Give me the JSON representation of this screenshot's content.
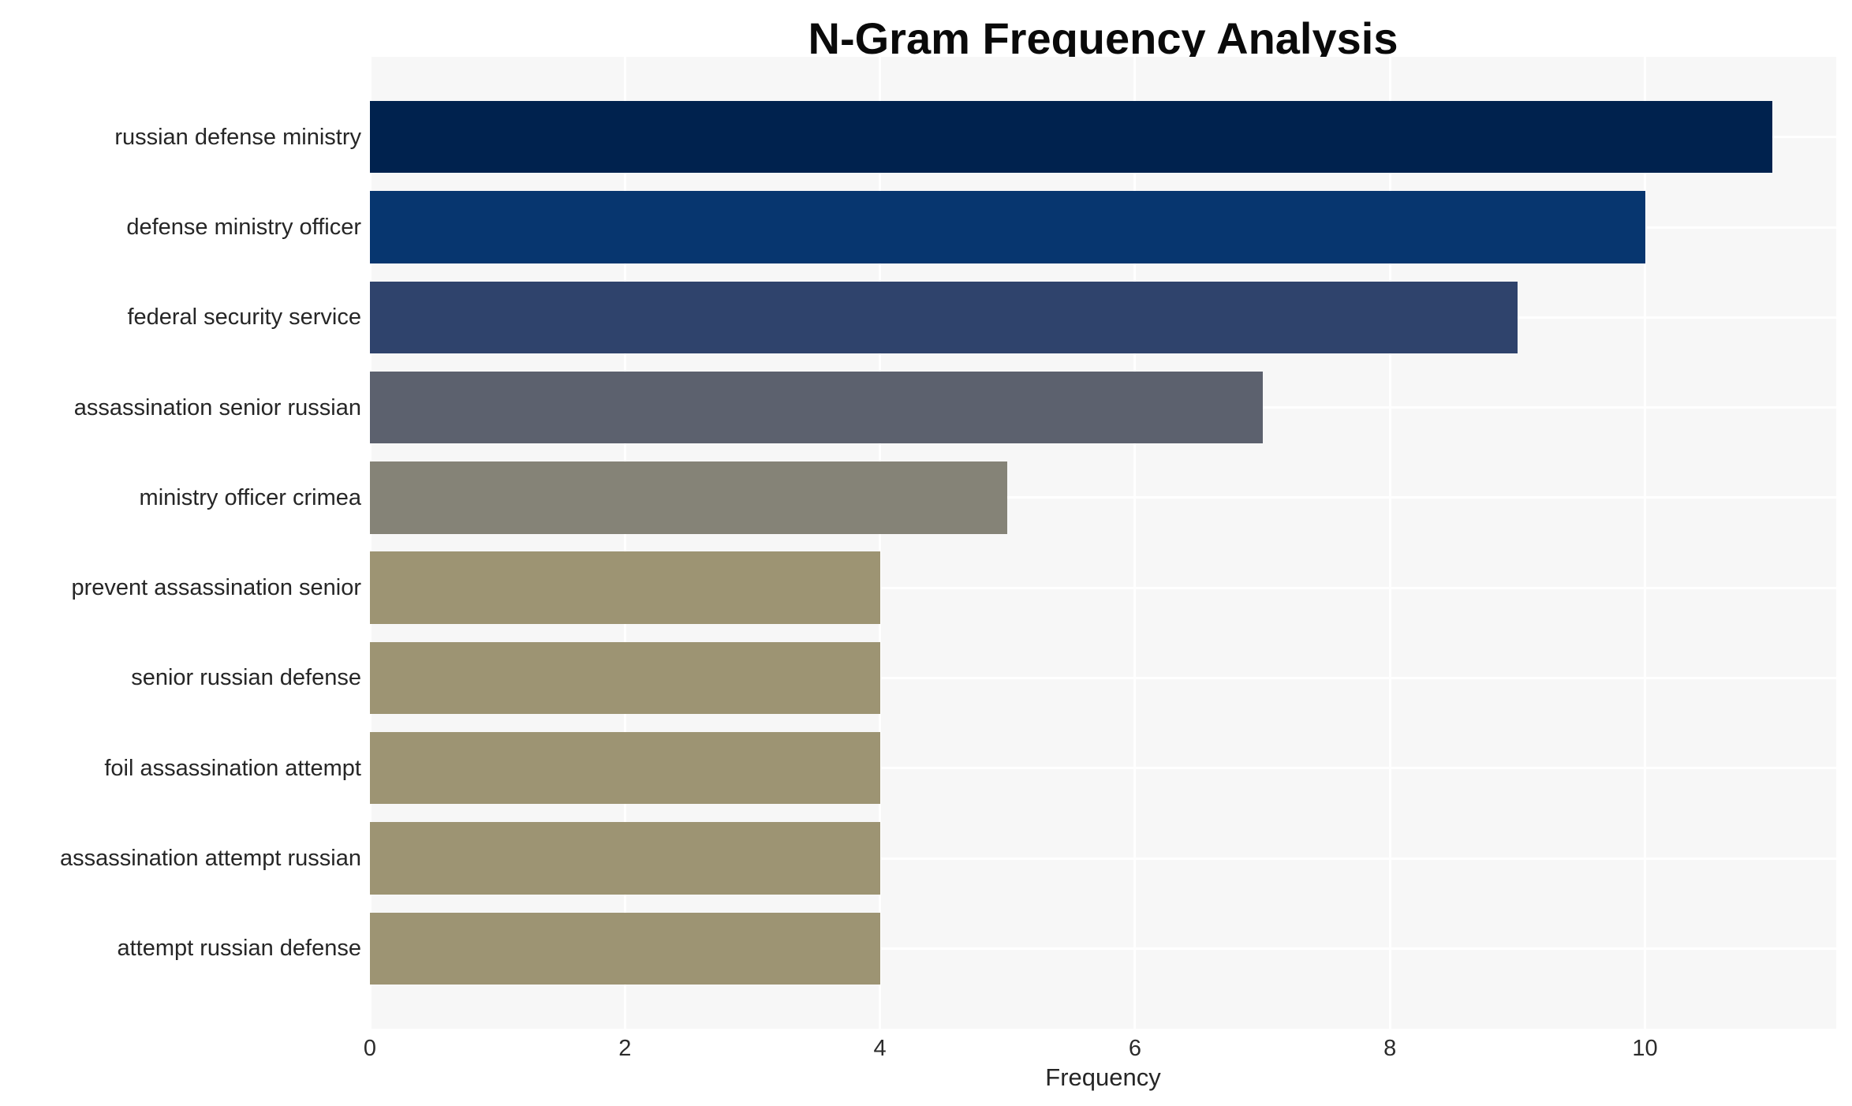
{
  "chart_data": {
    "type": "bar",
    "orientation": "horizontal",
    "title": "N-Gram Frequency Analysis",
    "xlabel": "Frequency",
    "ylabel": "",
    "categories": [
      "russian defense ministry",
      "defense ministry officer",
      "federal security service",
      "assassination senior russian",
      "ministry officer crimea",
      "prevent assassination senior",
      "senior russian defense",
      "foil assassination attempt",
      "assassination attempt russian",
      "attempt russian defense"
    ],
    "values": [
      11,
      10,
      9,
      7,
      5,
      4,
      4,
      4,
      4,
      4
    ],
    "bar_colors": [
      "#00224e",
      "#07366f",
      "#2f436c",
      "#5c616e",
      "#858377",
      "#9d9473",
      "#9d9473",
      "#9d9473",
      "#9d9473",
      "#9d9473"
    ],
    "xlim": [
      0,
      11.5
    ],
    "xticks": [
      0,
      2,
      4,
      6,
      8,
      10
    ],
    "grid": true,
    "legend": false,
    "colors": {
      "figure_background": "#ffffff",
      "plot_background": "#f7f7f7",
      "gridline": "#ffffff",
      "title_text": "#0a0a0a",
      "category_text": "#262626",
      "tick_text": "#2b2b2b"
    }
  }
}
